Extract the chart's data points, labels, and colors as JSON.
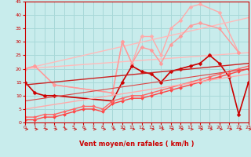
{
  "xlabel": "Vent moyen/en rafales ( km/h )",
  "bg_color": "#c8ecec",
  "grid_color": "#a8d8d8",
  "text_color": "#cc0000",
  "xlim": [
    0,
    23
  ],
  "ylim": [
    0,
    45
  ],
  "yticks": [
    0,
    5,
    10,
    15,
    20,
    25,
    30,
    35,
    40,
    45
  ],
  "xticks": [
    0,
    1,
    2,
    3,
    4,
    5,
    6,
    7,
    8,
    9,
    10,
    11,
    12,
    13,
    14,
    15,
    16,
    17,
    18,
    19,
    20,
    21,
    22,
    23
  ],
  "series": [
    {
      "x": [
        0,
        1,
        3,
        9,
        10,
        11,
        12,
        13,
        14,
        15,
        16,
        17,
        18,
        20,
        22
      ],
      "y": [
        20,
        21,
        14,
        11,
        30,
        22,
        32,
        32,
        25,
        35,
        38,
        43,
        44,
        41,
        26
      ],
      "color": "#ffaaaa",
      "lw": 1.0,
      "marker": "D",
      "ms": 2.5,
      "style": "-"
    },
    {
      "x": [
        0,
        23
      ],
      "y": [
        20,
        39
      ],
      "color": "#ffbbbb",
      "lw": 1.0,
      "marker": null,
      "ms": 0,
      "style": "-"
    },
    {
      "x": [
        0,
        23
      ],
      "y": [
        20,
        26
      ],
      "color": "#ffbbbb",
      "lw": 1.0,
      "marker": null,
      "ms": 0,
      "style": "-"
    },
    {
      "x": [
        0,
        1,
        3,
        9,
        10,
        11,
        12,
        13,
        14,
        15,
        16,
        17,
        18,
        20,
        22
      ],
      "y": [
        20,
        21,
        14,
        11,
        30,
        22,
        28,
        27,
        22,
        29,
        32,
        36,
        37,
        35,
        26
      ],
      "color": "#ff9999",
      "lw": 1.0,
      "marker": "D",
      "ms": 2.5,
      "style": "-"
    },
    {
      "x": [
        0,
        1,
        2,
        3,
        9,
        10,
        11,
        12,
        13,
        14,
        15,
        16,
        17,
        18,
        19,
        20,
        21,
        22,
        23
      ],
      "y": [
        15,
        11,
        10,
        10,
        8,
        15,
        21,
        19,
        18,
        15,
        19,
        20,
        21,
        22,
        25,
        22,
        17,
        3,
        15
      ],
      "color": "#cc0000",
      "lw": 1.2,
      "marker": "D",
      "ms": 2.5,
      "style": "-"
    },
    {
      "x": [
        0,
        1,
        2,
        3,
        4,
        5,
        6,
        7,
        8,
        9,
        10,
        11,
        12,
        13,
        14,
        15,
        16,
        17,
        18,
        19,
        20,
        21,
        22,
        23
      ],
      "y": [
        1,
        1,
        2,
        2,
        3,
        4,
        5,
        5,
        4,
        7,
        8,
        9,
        9,
        10,
        11,
        12,
        13,
        14,
        15,
        16,
        17,
        18,
        19,
        20
      ],
      "color": "#ff4444",
      "lw": 1.0,
      "marker": "D",
      "ms": 2.0,
      "style": "-"
    },
    {
      "x": [
        0,
        1,
        2,
        3,
        4,
        5,
        6,
        7,
        8,
        9,
        10,
        11,
        12,
        13,
        14,
        15,
        16,
        17,
        18,
        19,
        20,
        21,
        22,
        23
      ],
      "y": [
        2,
        2,
        3,
        3,
        4,
        5,
        6,
        6,
        5,
        8,
        9,
        10,
        10,
        11,
        12,
        13,
        14,
        15,
        16,
        17,
        18,
        19,
        20,
        21
      ],
      "color": "#ff6666",
      "lw": 1.0,
      "marker": "D",
      "ms": 2.0,
      "style": "-"
    },
    {
      "x": [
        0,
        23
      ],
      "y": [
        5,
        18
      ],
      "color": "#ffaaaa",
      "lw": 1.0,
      "marker": null,
      "ms": 0,
      "style": "-"
    },
    {
      "x": [
        0,
        23
      ],
      "y": [
        14,
        22
      ],
      "color": "#cc2222",
      "lw": 1.0,
      "marker": null,
      "ms": 0,
      "style": "-"
    },
    {
      "x": [
        0,
        23
      ],
      "y": [
        8,
        20
      ],
      "color": "#dd4444",
      "lw": 0.8,
      "marker": null,
      "ms": 0,
      "style": "-"
    }
  ]
}
